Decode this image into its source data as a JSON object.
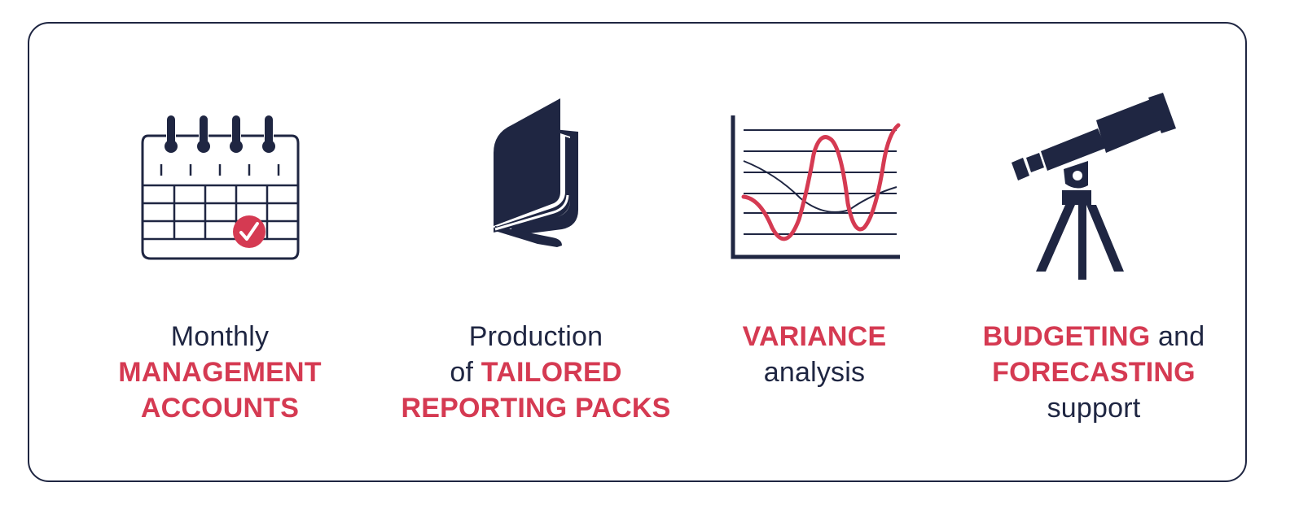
{
  "colors": {
    "navy": "#1f2642",
    "accent": "#d53a52",
    "background": "#ffffff"
  },
  "services": [
    {
      "icon": "calendar-check-icon",
      "lines": [
        [
          {
            "text": "Monthly",
            "style": "plain"
          }
        ],
        [
          {
            "text": "MANAGEMENT",
            "style": "accent"
          }
        ],
        [
          {
            "text": "ACCOUNTS",
            "style": "accent"
          }
        ]
      ]
    },
    {
      "icon": "book-icon",
      "lines": [
        [
          {
            "text": "Production",
            "style": "plain"
          }
        ],
        [
          {
            "text": "of ",
            "style": "plain"
          },
          {
            "text": "TAILORED",
            "style": "accent"
          }
        ],
        [
          {
            "text": "REPORTING PACKS",
            "style": "accent"
          }
        ]
      ]
    },
    {
      "icon": "variance-chart-icon",
      "lines": [
        [
          {
            "text": "VARIANCE",
            "style": "accent"
          }
        ],
        [
          {
            "text": "analysis",
            "style": "plain"
          }
        ]
      ]
    },
    {
      "icon": "telescope-icon",
      "lines": [
        [
          {
            "text": "BUDGETING",
            "style": "accent"
          },
          {
            "text": " and",
            "style": "plain"
          }
        ],
        [
          {
            "text": "FORECASTING",
            "style": "accent"
          }
        ],
        [
          {
            "text": "support",
            "style": "plain"
          }
        ]
      ]
    }
  ]
}
